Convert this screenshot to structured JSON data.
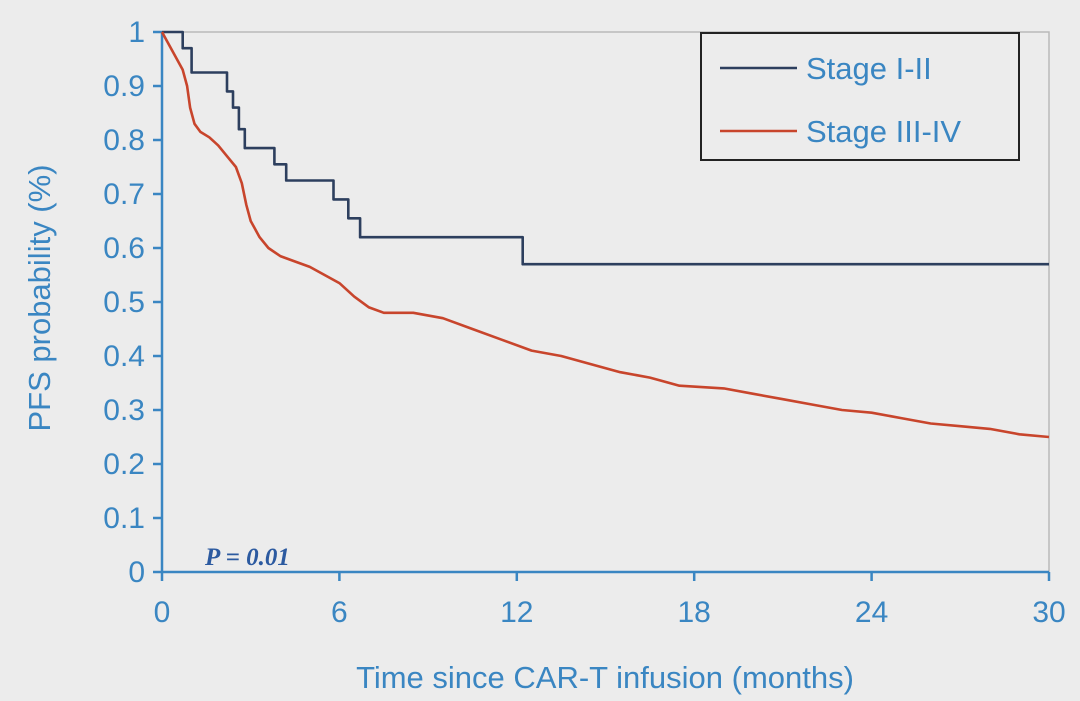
{
  "chart_data": {
    "type": "line",
    "xlabel": "Time since CAR-T infusion (months)",
    "ylabel": "PFS probability (%)",
    "xlim": [
      0,
      30
    ],
    "ylim": [
      0,
      1
    ],
    "xticks": [
      "0",
      "6",
      "12",
      "18",
      "24",
      "30"
    ],
    "yticks": [
      "0",
      "0.1",
      "0.2",
      "0.3",
      "0.4",
      "0.5",
      "0.6",
      "0.7",
      "0.8",
      "0.9",
      "1"
    ],
    "grid": false,
    "legend_position": "top-right",
    "annotation": "P = 0.01",
    "series": [
      {
        "name": "Stage I-II",
        "color": "#2d3f5e",
        "points": [
          [
            0,
            1
          ],
          [
            0.7,
            1
          ],
          [
            0.7,
            0.97
          ],
          [
            1,
            0.97
          ],
          [
            1,
            0.925
          ],
          [
            2.2,
            0.925
          ],
          [
            2.2,
            0.89
          ],
          [
            2.4,
            0.89
          ],
          [
            2.4,
            0.86
          ],
          [
            2.6,
            0.86
          ],
          [
            2.6,
            0.82
          ],
          [
            2.8,
            0.82
          ],
          [
            2.8,
            0.785
          ],
          [
            3.8,
            0.785
          ],
          [
            3.8,
            0.755
          ],
          [
            4.2,
            0.755
          ],
          [
            4.2,
            0.725
          ],
          [
            5.8,
            0.725
          ],
          [
            5.8,
            0.69
          ],
          [
            6.3,
            0.69
          ],
          [
            6.3,
            0.655
          ],
          [
            6.7,
            0.655
          ],
          [
            6.7,
            0.62
          ],
          [
            12.2,
            0.62
          ],
          [
            12.2,
            0.57
          ],
          [
            30,
            0.57
          ]
        ]
      },
      {
        "name": "Stage III-IV",
        "color": "#c8452c",
        "points": [
          [
            0,
            1
          ],
          [
            0.2,
            0.98
          ],
          [
            0.5,
            0.95
          ],
          [
            0.7,
            0.93
          ],
          [
            0.85,
            0.9
          ],
          [
            0.95,
            0.86
          ],
          [
            1.1,
            0.83
          ],
          [
            1.3,
            0.815
          ],
          [
            1.6,
            0.805
          ],
          [
            1.9,
            0.79
          ],
          [
            2.2,
            0.77
          ],
          [
            2.5,
            0.75
          ],
          [
            2.7,
            0.72
          ],
          [
            2.85,
            0.68
          ],
          [
            3.0,
            0.65
          ],
          [
            3.3,
            0.62
          ],
          [
            3.6,
            0.6
          ],
          [
            4.0,
            0.585
          ],
          [
            4.5,
            0.575
          ],
          [
            5.0,
            0.565
          ],
          [
            5.5,
            0.55
          ],
          [
            6.0,
            0.535
          ],
          [
            6.5,
            0.51
          ],
          [
            7.0,
            0.49
          ],
          [
            7.5,
            0.48
          ],
          [
            8.5,
            0.48
          ],
          [
            9.5,
            0.47
          ],
          [
            10.5,
            0.45
          ],
          [
            11.5,
            0.43
          ],
          [
            12.5,
            0.41
          ],
          [
            13.5,
            0.4
          ],
          [
            14.5,
            0.385
          ],
          [
            15.5,
            0.37
          ],
          [
            16.5,
            0.36
          ],
          [
            17.5,
            0.345
          ],
          [
            19,
            0.34
          ],
          [
            20,
            0.33
          ],
          [
            21,
            0.32
          ],
          [
            22,
            0.31
          ],
          [
            23,
            0.3
          ],
          [
            24,
            0.295
          ],
          [
            25,
            0.285
          ],
          [
            26,
            0.275
          ],
          [
            27,
            0.27
          ],
          [
            28,
            0.265
          ],
          [
            29,
            0.255
          ],
          [
            30,
            0.25
          ]
        ]
      }
    ]
  }
}
